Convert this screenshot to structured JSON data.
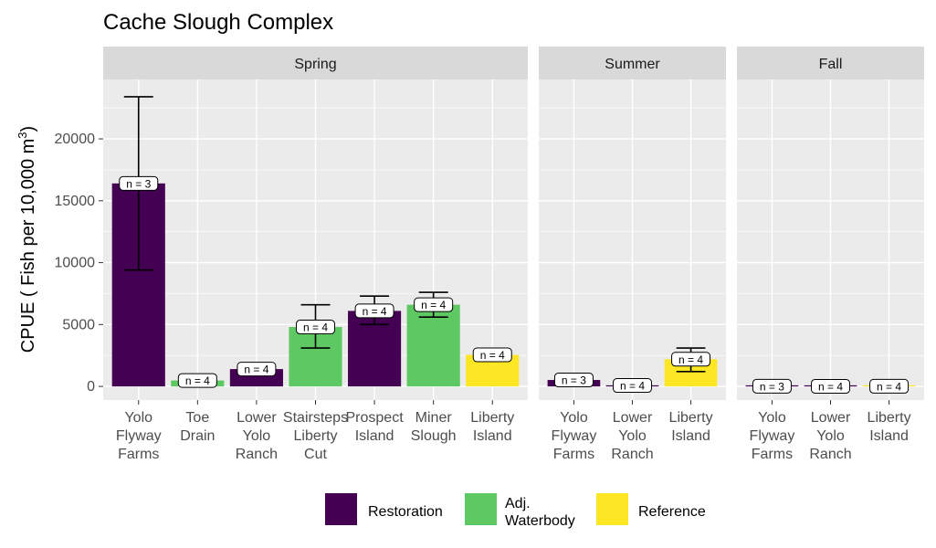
{
  "chart_data": {
    "type": "bar",
    "title": "Cache Slough Complex",
    "ylabel_parts": [
      "CPUE ( Fish per 10,000 m",
      "3",
      ")"
    ],
    "xlabel": "",
    "ylim": [
      -1100,
      24800
    ],
    "yticks": [
      0,
      5000,
      10000,
      15000,
      20000
    ],
    "grid": true,
    "facets": [
      {
        "name": "Spring",
        "bars": [
          {
            "label": [
              "Yolo",
              "Flyway",
              "Farms"
            ],
            "value": 16400,
            "err_low": 9400,
            "err_high": 23400,
            "group": "Restoration",
            "n": "n = 3"
          },
          {
            "label": [
              "Toe",
              "Drain"
            ],
            "value": 480,
            "err_low": null,
            "err_high": null,
            "group": "Adj. Waterbody",
            "n": "n = 4"
          },
          {
            "label": [
              "Lower",
              "Yolo",
              "Ranch"
            ],
            "value": 1400,
            "err_low": null,
            "err_high": null,
            "group": "Restoration",
            "n": "n = 4"
          },
          {
            "label": [
              "Stairsteps",
              "Liberty",
              "Cut"
            ],
            "value": 4800,
            "err_low": 3100,
            "err_high": 6600,
            "group": "Adj. Waterbody",
            "n": "n = 4"
          },
          {
            "label": [
              "Prospect",
              "Island"
            ],
            "value": 6100,
            "err_low": 5000,
            "err_high": 7300,
            "group": "Restoration",
            "n": "n = 4"
          },
          {
            "label": [
              "Miner",
              "Slough"
            ],
            "value": 6600,
            "err_low": 5600,
            "err_high": 7600,
            "group": "Adj. Waterbody",
            "n": "n = 4"
          },
          {
            "label": [
              "Liberty",
              "Island"
            ],
            "value": 2550,
            "err_low": null,
            "err_high": null,
            "group": "Reference",
            "n": "n = 4"
          }
        ]
      },
      {
        "name": "Summer",
        "bars": [
          {
            "label": [
              "Yolo",
              "Flyway",
              "Farms"
            ],
            "value": 520,
            "err_low": null,
            "err_high": null,
            "group": "Restoration",
            "n": "n = 3"
          },
          {
            "label": [
              "Lower",
              "Yolo",
              "Ranch"
            ],
            "value": 80,
            "err_low": null,
            "err_high": null,
            "group": "Restoration",
            "n": "n = 4"
          },
          {
            "label": [
              "Liberty",
              "Island"
            ],
            "value": 2200,
            "err_low": 1200,
            "err_high": 3100,
            "group": "Reference",
            "n": "n = 4"
          }
        ]
      },
      {
        "name": "Fall",
        "bars": [
          {
            "label": [
              "Yolo",
              "Flyway",
              "Farms"
            ],
            "value": 20,
            "err_low": null,
            "err_high": null,
            "group": "Restoration",
            "n": "n = 3"
          },
          {
            "label": [
              "Lower",
              "Yolo",
              "Ranch"
            ],
            "value": 10,
            "err_low": null,
            "err_high": null,
            "group": "Restoration",
            "n": "n = 4"
          },
          {
            "label": [
              "Liberty",
              "Island"
            ],
            "value": 15,
            "err_low": null,
            "err_high": null,
            "group": "Reference",
            "n": "n = 4"
          }
        ]
      }
    ],
    "legend": {
      "placement": "bottom",
      "entries": [
        {
          "name": "Restoration",
          "lines": [
            "Restoration"
          ],
          "color": "#440154"
        },
        {
          "name": "Adj. Waterbody",
          "lines": [
            "Adj.",
            "Waterbody"
          ],
          "color": "#5ec962"
        },
        {
          "name": "Reference",
          "lines": [
            "Reference"
          ],
          "color": "#fde725"
        }
      ]
    },
    "colors": {
      "panel_background": "#ebebeb",
      "strip_background": "#d9d9d9",
      "grid": "#ffffff"
    }
  }
}
